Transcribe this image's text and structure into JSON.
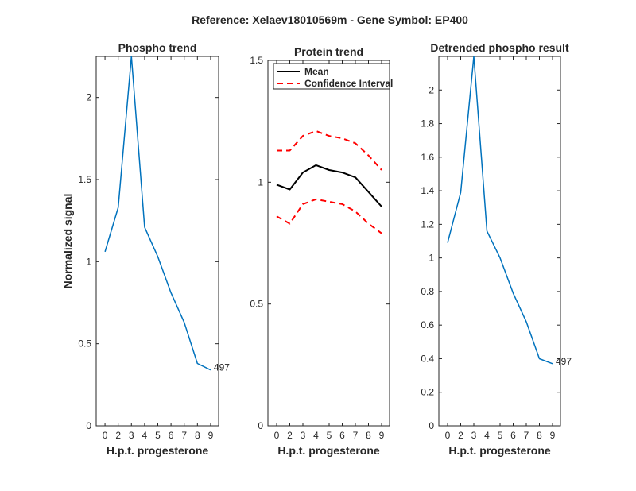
{
  "chart_data": {
    "suptitle": "Reference:  Xelaev18010569m - Gene Symbol:  EP400",
    "colors": {
      "series": "#0072BD",
      "mean": "#000000",
      "ci": "#FF0000",
      "axis": "#262626"
    },
    "panels": [
      {
        "type": "line",
        "title": "Phospho trend",
        "xlabel": "H.p.t. progesterone",
        "ylabel": "Normalized signal",
        "xticks": [
          "0",
          "2",
          "3",
          "4",
          "5",
          "6",
          "7",
          "8",
          "9"
        ],
        "yticks": [
          "0",
          "0.5",
          "1",
          "1.5",
          "2"
        ],
        "ylim": [
          0,
          2.25
        ],
        "grid": false,
        "series": [
          {
            "values": [
              1.06,
              1.33,
              2.25,
              1.21,
              1.03,
              0.81,
              0.63,
              0.38,
              0.34
            ]
          }
        ],
        "annotation": "497"
      },
      {
        "type": "line",
        "title": "Protein trend",
        "xlabel": "H.p.t. progesterone",
        "ylabel": "",
        "xticks": [
          "0",
          "2",
          "3",
          "4",
          "5",
          "6",
          "7",
          "8",
          "9"
        ],
        "yticks": [
          "0",
          "0.5",
          "1",
          "1.5"
        ],
        "ylim": [
          0,
          1.5
        ],
        "grid": false,
        "legend": {
          "placement": "top-left",
          "entries": [
            "Mean",
            "Confidence Interval"
          ]
        },
        "series": [
          {
            "name": "Mean",
            "values": [
              0.99,
              0.97,
              1.04,
              1.07,
              1.05,
              1.04,
              1.02,
              0.96,
              0.9
            ]
          },
          {
            "name": "Confidence Interval",
            "values": [
              1.13,
              1.13,
              1.19,
              1.21,
              1.19,
              1.18,
              1.16,
              1.11,
              1.05
            ]
          },
          {
            "name": "Confidence Interval",
            "values": [
              0.86,
              0.83,
              0.91,
              0.93,
              0.92,
              0.91,
              0.88,
              0.83,
              0.79
            ]
          }
        ]
      },
      {
        "type": "line",
        "title": "Detrended phospho result",
        "xlabel": "H.p.t. progesterone",
        "ylabel": "",
        "xticks": [
          "0",
          "2",
          "3",
          "4",
          "5",
          "6",
          "7",
          "8",
          "9"
        ],
        "yticks": [
          "0",
          "0.2",
          "0.4",
          "0.6",
          "0.8",
          "1",
          "1.2",
          "1.4",
          "1.6",
          "1.8",
          "2"
        ],
        "ylim": [
          0,
          2.2
        ],
        "grid": false,
        "series": [
          {
            "values": [
              1.09,
              1.39,
              2.2,
              1.16,
              1.0,
              0.79,
              0.62,
              0.4,
              0.37
            ]
          }
        ],
        "annotation": "497"
      }
    ]
  }
}
